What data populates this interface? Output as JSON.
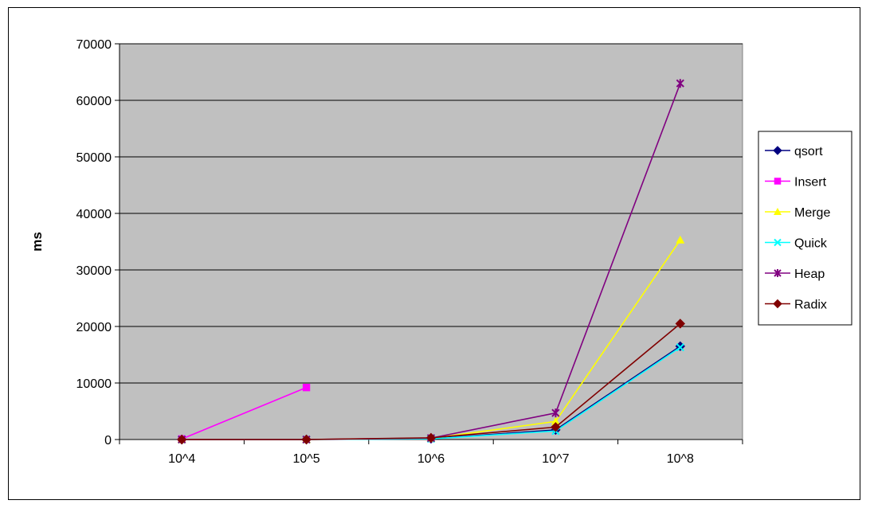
{
  "chart_data": {
    "type": "line",
    "title": "",
    "xlabel": "",
    "ylabel": "ms",
    "categories": [
      "10^4",
      "10^5",
      "10^6",
      "10^7",
      "10^8"
    ],
    "ylim": [
      0,
      70000
    ],
    "yticks": [
      0,
      10000,
      20000,
      30000,
      40000,
      50000,
      60000,
      70000
    ],
    "grid": true,
    "plot_background": "#C0C0C0",
    "legend_position": "right",
    "series": [
      {
        "name": "qsort",
        "color": "#000080",
        "marker": "diamond",
        "values": [
          0,
          0,
          150,
          1700,
          16500
        ]
      },
      {
        "name": "Insert",
        "color": "#FF00FF",
        "marker": "square",
        "values": [
          100,
          9200,
          null,
          null,
          null
        ]
      },
      {
        "name": "Merge",
        "color": "#FFFF00",
        "marker": "triangle",
        "values": [
          0,
          0,
          200,
          3200,
          35300
        ]
      },
      {
        "name": "Quick",
        "color": "#00FFFF",
        "marker": "x",
        "values": [
          0,
          0,
          120,
          1500,
          16300
        ]
      },
      {
        "name": "Heap",
        "color": "#800080",
        "marker": "star",
        "values": [
          0,
          0,
          250,
          4700,
          63000
        ]
      },
      {
        "name": "Radix",
        "color": "#800000",
        "marker": "diamond",
        "values": [
          0,
          0,
          300,
          2200,
          20500
        ]
      }
    ]
  }
}
